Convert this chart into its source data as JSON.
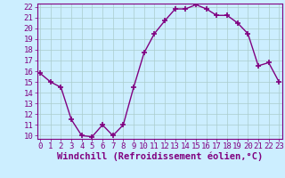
{
  "x": [
    0,
    1,
    2,
    3,
    4,
    5,
    6,
    7,
    8,
    9,
    10,
    11,
    12,
    13,
    14,
    15,
    16,
    17,
    18,
    19,
    20,
    21,
    22,
    23
  ],
  "y": [
    15.8,
    15.0,
    14.5,
    11.5,
    10.0,
    9.9,
    11.0,
    10.0,
    11.0,
    14.5,
    17.7,
    19.5,
    20.7,
    21.8,
    21.8,
    22.2,
    21.8,
    21.2,
    21.2,
    20.5,
    19.5,
    16.5,
    16.8,
    15.0
  ],
  "line_color": "#800080",
  "marker": "+",
  "markersize": 5,
  "markeredgewidth": 1.2,
  "linewidth": 1.0,
  "xlabel": "Windchill (Refroidissement éolien,°C)",
  "xlabel_fontsize": 7.5,
  "ytick_min": 10,
  "ytick_max": 22,
  "xtick_min": 0,
  "xtick_max": 23,
  "bg_color": "#cceeff",
  "grid_color": "#aacccc",
  "tick_fontsize": 6.5,
  "spine_color": "#800080"
}
